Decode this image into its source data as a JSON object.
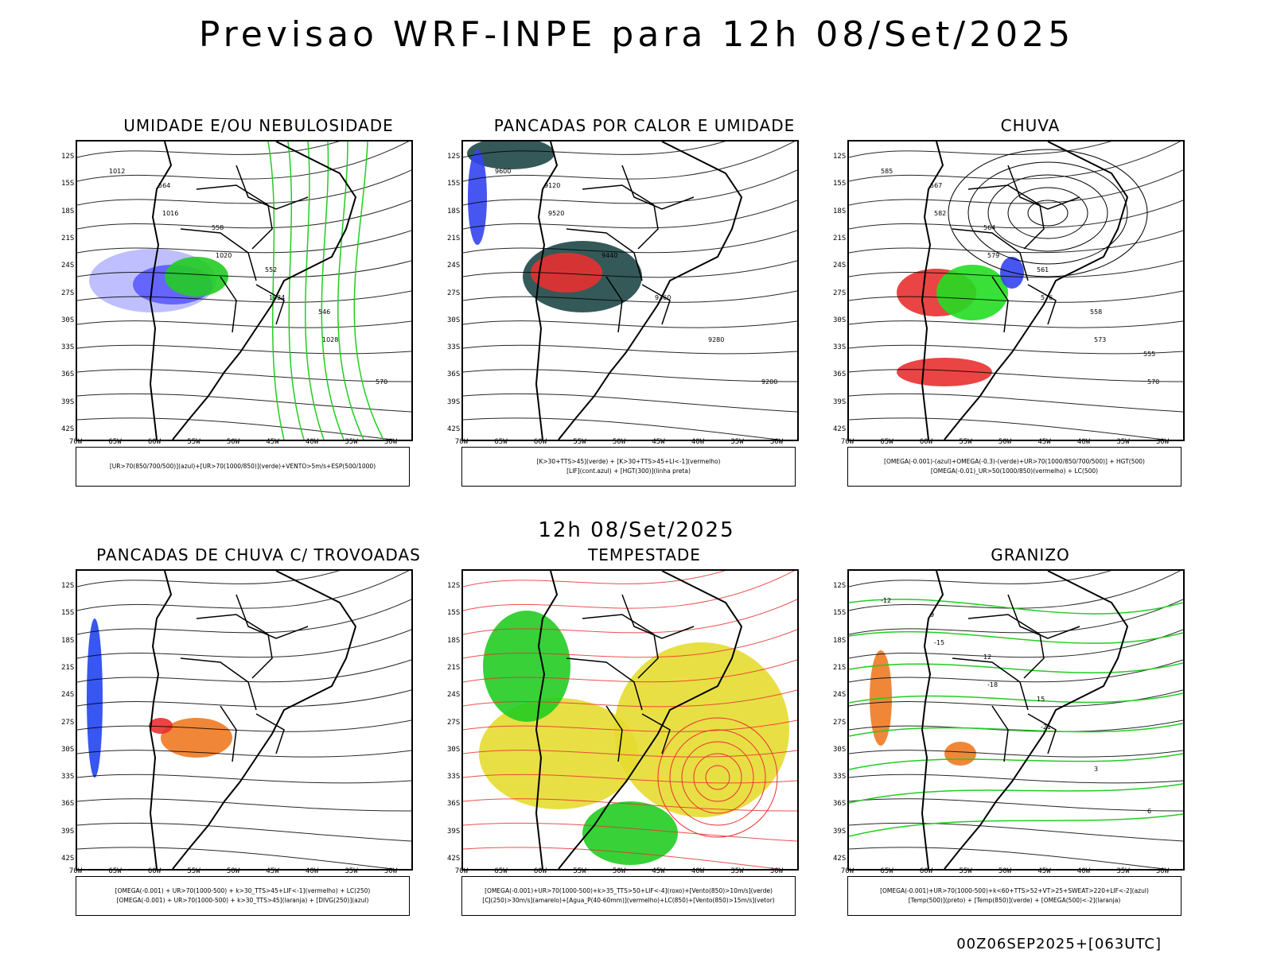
{
  "title": "Previsao WRF-INPE  para 12h 08/Set/2025",
  "mid_title": "12h 08/Set/2025",
  "timestamp": "00Z06SEP2025+[063UTC]",
  "axes": {
    "lat_labels": [
      "12S",
      "15S",
      "18S",
      "21S",
      "24S",
      "27S",
      "30S",
      "33S",
      "36S",
      "39S",
      "42S"
    ],
    "lon_labels": [
      "70W",
      "65W",
      "60W",
      "55W",
      "50W",
      "45W",
      "40W",
      "35W",
      "30W"
    ]
  },
  "panels": [
    {
      "title": "UMIDADE E/OU NEBULOSIDADE",
      "legend": [
        "[UR>70(850/700/500)](azul)+[UR>70(1000/850)](verde)+VENTO>5m/s+ESP(500/1000)"
      ],
      "contour_labels": [
        "1012",
        "1016",
        "1020",
        "1024",
        "1028",
        "570",
        "564",
        "558",
        "552",
        "546"
      ],
      "colors": {
        "blue": "#5b5bff",
        "green": "#22cc22",
        "red": "#e83030"
      }
    },
    {
      "title": "PANCADAS POR CALOR E UMIDADE",
      "legend": [
        "[K>30+TTS>45](verde) + [K>30+TTS>45+LI<-1](vermelho)",
        "[LIF](cont.azul) + [HGT(300)](linha preta)"
      ],
      "contour_labels": [
        "9600",
        "9520",
        "9440",
        "9360",
        "9280",
        "9200",
        "9120"
      ],
      "colors": {
        "dark": "#1f4747",
        "red": "#e83030",
        "blue": "#3344ee"
      }
    },
    {
      "title": "CHUVA",
      "legend": [
        "[OMEGA(-0.001)-(azul)+OMEGA(-0.3)-(verde)+UR>70(1000/850/700/500)] + HGT(500)",
        "[OMEGA(-0.01)_UR>50(1000/850)(vermelho) + LC(500)"
      ],
      "contour_labels": [
        "585",
        "582",
        "579",
        "576",
        "573",
        "570",
        "567",
        "564",
        "561",
        "558",
        "555"
      ],
      "colors": {
        "green": "#22dd22",
        "blue": "#3344ee",
        "red": "#e83030"
      }
    },
    {
      "title": "PANCADAS DE CHUVA C/ TROVOADAS",
      "legend": [
        "[OMEGA(-0.001) + UR>70(1000-500) + k>30_TTS>45+LIF<-1](vermelho) + LC(250)",
        "[OMEGA(-0.001) + UR>70(1000-500) + k>30_TTS>45](laranja) + [DIVG(250)](azul)"
      ],
      "contour_labels": [],
      "colors": {
        "orange": "#ee7a22",
        "red": "#e83030",
        "blue": "#2244ee"
      }
    },
    {
      "title": "TEMPESTADE",
      "legend": [
        "[OMEGA(-0.001)+UR>70(1000-500)+k>35_TTS>50+LIF<-4](roxo)+[Vento(850)>10m/s](verde)",
        "[CJ(250)>30m/s](amarelo)+[Agua_P(40-60mm)](vermelho)+LC(850)+[Vento(850)>15m/s](vetor)"
      ],
      "contour_labels": [],
      "colors": {
        "yellow": "#e6dc30",
        "green": "#22cc22",
        "red": "#e83030"
      }
    },
    {
      "title": "GRANIZO",
      "legend": [
        "[OMEGA(-0.001)+UR>70(1000-500)+k<60+TTS>52+VT>25+SWEAT>220+LIF<-2](azul)",
        "[Temp(500)](preto) + [Temp(850)](verde) + [OMEGA(500)<-2](laranja)"
      ],
      "contour_labels": [
        "-12",
        "-15",
        "-18",
        "-21",
        "3",
        "6",
        "9",
        "12",
        "15"
      ],
      "colors": {
        "green": "#22cc22",
        "orange": "#ee7a22",
        "blue": "#2244ee"
      }
    }
  ]
}
